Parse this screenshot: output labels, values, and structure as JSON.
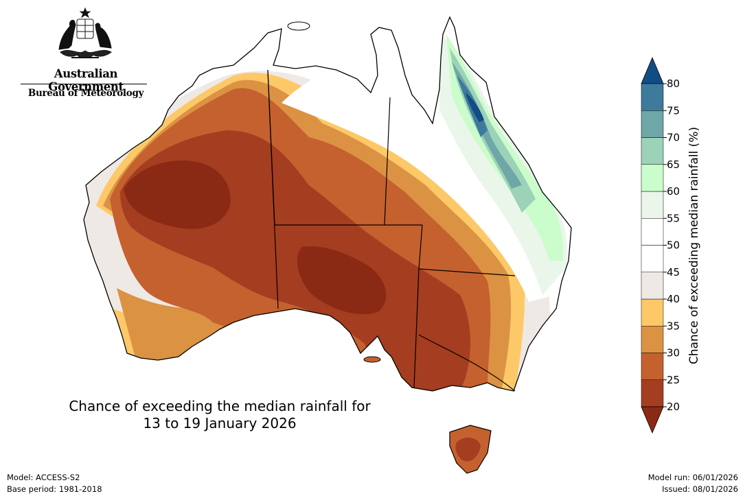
{
  "branding": {
    "government": "Australian Government",
    "bureau": "Bureau of Meteorology",
    "crest_icon": "coat-of-arms-icon"
  },
  "title": {
    "line1": "Chance of exceeding the median rainfall for",
    "line2": "13 to 19 January 2026"
  },
  "colorbar": {
    "label": "Chance of exceeding median rainfall (%)",
    "ticks": [
      "20",
      "25",
      "30",
      "35",
      "40",
      "45",
      "50",
      "55",
      "60",
      "65",
      "70",
      "75",
      "80"
    ],
    "colors": {
      "below_20": "#8a2a14",
      "20_25": "#a53d20",
      "25_30": "#c4612f",
      "30_35": "#dc9243",
      "35_40": "#fdc968",
      "40_45": "#efe9e5",
      "45_50": "#ffffff",
      "50_55": "#ffffff",
      "55_60": "#eaf6ea",
      "60_65": "#cbfccb",
      "65_70": "#9bd2b8",
      "70_75": "#6fa6a7",
      "75_80": "#3e7a9c",
      "above_80": "#124c84"
    }
  },
  "footer": {
    "model": "Model: ACCESS-S2",
    "base_period": "Base period: 1981-2018",
    "model_run": "Model run: 06/01/2026",
    "issued": "Issued: 08/01/2026"
  }
}
